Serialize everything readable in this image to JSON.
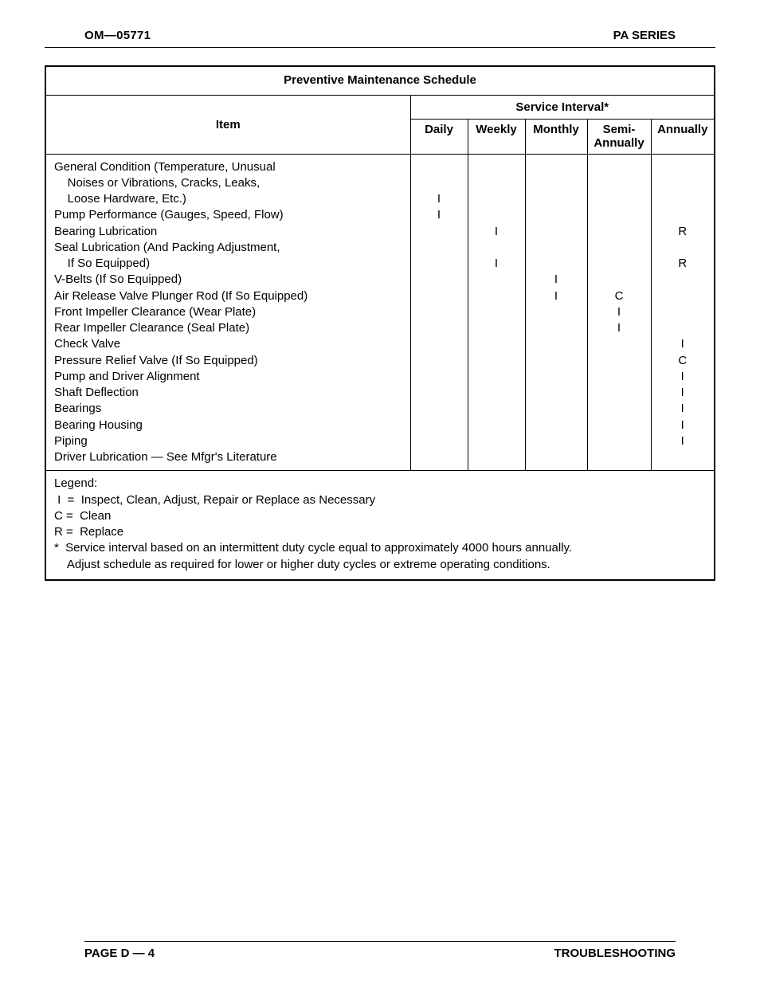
{
  "header": {
    "doc_code": "OM—05771",
    "series": "PA SERIES"
  },
  "table": {
    "title": "Preventive Maintenance Schedule",
    "item_header": "Item",
    "interval_header": "Service Interval*",
    "columns": [
      "Daily",
      "Weekly",
      "Monthly",
      "Semi-\nAnnually",
      "Annually"
    ],
    "col_widths": [
      "72px",
      "72px",
      "78px",
      "80px",
      "80px"
    ],
    "rows": [
      {
        "lines": [
          "General Condition (Temperature, Unusual",
          "    Noises or Vibrations, Cracks, Leaks,",
          "    Loose Hardware, Etc.)"
        ],
        "marks": [
          "I",
          "",
          "",
          "",
          ""
        ]
      },
      {
        "lines": [
          "Pump Performance (Gauges, Speed, Flow)"
        ],
        "marks": [
          "I",
          "",
          "",
          "",
          ""
        ]
      },
      {
        "lines": [
          "Bearing Lubrication"
        ],
        "marks": [
          "",
          "I",
          "",
          "",
          "R"
        ]
      },
      {
        "lines": [
          "Seal Lubrication (And Packing Adjustment,",
          "    If So Equipped)"
        ],
        "marks": [
          "",
          "I",
          "",
          "",
          "R"
        ]
      },
      {
        "lines": [
          "V-Belts (If So Equipped)"
        ],
        "marks": [
          "",
          "",
          "I",
          "",
          ""
        ]
      },
      {
        "lines": [
          "Air Release Valve Plunger Rod (If So Equipped)"
        ],
        "marks": [
          "",
          "",
          "I",
          "C",
          ""
        ]
      },
      {
        "lines": [
          "Front Impeller Clearance (Wear Plate)"
        ],
        "marks": [
          "",
          "",
          "",
          "I",
          ""
        ]
      },
      {
        "lines": [
          "Rear Impeller Clearance (Seal Plate)"
        ],
        "marks": [
          "",
          "",
          "",
          "I",
          ""
        ]
      },
      {
        "lines": [
          "Check Valve"
        ],
        "marks": [
          "",
          "",
          "",
          "",
          "I"
        ]
      },
      {
        "lines": [
          "Pressure Relief Valve (If So Equipped)"
        ],
        "marks": [
          "",
          "",
          "",
          "",
          "C"
        ]
      },
      {
        "lines": [
          "Pump and Driver Alignment"
        ],
        "marks": [
          "",
          "",
          "",
          "",
          "I"
        ]
      },
      {
        "lines": [
          "Shaft Deflection"
        ],
        "marks": [
          "",
          "",
          "",
          "",
          "I"
        ]
      },
      {
        "lines": [
          "Bearings"
        ],
        "marks": [
          "",
          "",
          "",
          "",
          "I"
        ]
      },
      {
        "lines": [
          "Bearing Housing"
        ],
        "marks": [
          "",
          "",
          "",
          "",
          "I"
        ]
      },
      {
        "lines": [
          "Piping"
        ],
        "marks": [
          "",
          "",
          "",
          "",
          "I"
        ]
      },
      {
        "lines": [
          "Driver Lubrication — See Mfgr's Literature"
        ],
        "marks": [
          "",
          "",
          "",
          "",
          ""
        ]
      }
    ],
    "legend": [
      "Legend:",
      " I  =  Inspect, Clean, Adjust, Repair or Replace as Necessary",
      "C =  Clean",
      "R =  Replace",
      "*  Service interval based on an intermittent duty cycle equal to approximately 4000 hours annually.",
      "    Adjust schedule as required for lower or higher duty cycles or extreme operating conditions."
    ]
  },
  "footer": {
    "page": "PAGE D — 4",
    "section": "TROUBLESHOOTING"
  }
}
